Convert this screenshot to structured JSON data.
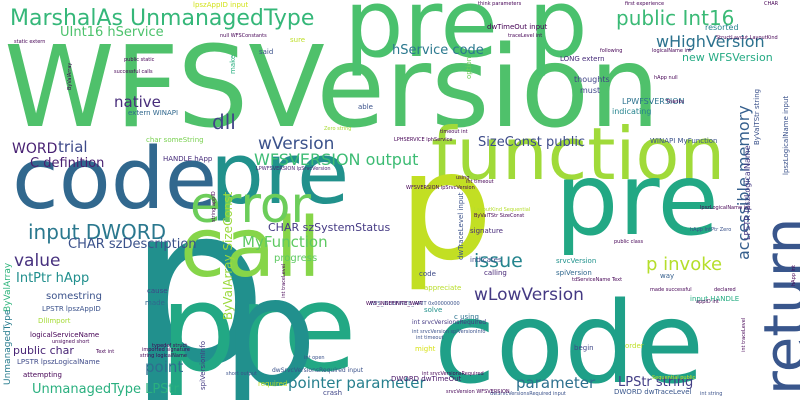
{
  "words": [
    {
      "text": "WFSVersion",
      "color": "#4fc16b"
    },
    {
      "text": "p",
      "color": "#21908d"
    },
    {
      "text": "pre",
      "color": "#22a884"
    },
    {
      "text": "code",
      "color": "#31688e"
    },
    {
      "text": "pre p",
      "color": "#4ac16d"
    },
    {
      "text": "code",
      "color": "#1fa088"
    },
    {
      "text": "function",
      "color": "#a0da39"
    },
    {
      "text": "pre",
      "color": "#21918c"
    },
    {
      "text": "p",
      "color": "#c2df23"
    },
    {
      "text": "call",
      "color": "#86d549"
    },
    {
      "text": "return",
      "color": "#39568c"
    },
    {
      "text": "MarshalAs UnmanagedType",
      "color": "#35b779"
    },
    {
      "text": "error",
      "color": "#6ccd5a"
    },
    {
      "text": "public Int16",
      "color": "#3aba76"
    },
    {
      "text": "input DWORD",
      "color": "#2a788e"
    },
    {
      "text": "wHighVersion",
      "color": "#2c728e"
    },
    {
      "text": "accessible memory",
      "color": "#355f8d"
    },
    {
      "text": "wVersion",
      "color": "#3b528b"
    },
    {
      "text": "WFSVERSION output",
      "color": "#3dbc74"
    },
    {
      "text": "p invoke",
      "color": "#b5de2b"
    },
    {
      "text": "issue",
      "color": "#25858e"
    },
    {
      "text": "wLowVersion",
      "color": "#443983"
    },
    {
      "text": "pointer parameter",
      "color": "#27808e"
    },
    {
      "text": "parameter",
      "color": "#2d708e"
    },
    {
      "text": "point",
      "color": "#2e6e8e"
    },
    {
      "text": "native",
      "color": "#472c7a"
    },
    {
      "text": "dll",
      "color": "#414487"
    },
    {
      "text": "value",
      "color": "#46307e"
    },
    {
      "text": "MyFunction",
      "color": "#5ec962"
    },
    {
      "text": "UInt16 hService",
      "color": "#4cc26c"
    },
    {
      "text": "hService code",
      "color": "#2a788e"
    },
    {
      "text": "SizeConst public",
      "color": "#3e4c8a"
    },
    {
      "text": "C definition",
      "color": "#481f70"
    },
    {
      "text": "CHAR szDescription",
      "color": "#3b528b"
    },
    {
      "text": "CHAR szSystemStatus",
      "color": "#443983"
    },
    {
      "text": "IntPtr hApp",
      "color": "#218f8d"
    },
    {
      "text": "trial",
      "color": "#3e4989"
    },
    {
      "text": "WORD",
      "color": "#482173"
    },
    {
      "text": "LPStr string",
      "color": "#433e85"
    },
    {
      "text": "UnmanagedType LPStr",
      "color": "#2ab07f"
    },
    {
      "text": "new WFSVersion",
      "color": "#24aa83"
    },
    {
      "text": "ByValArray SizeConst",
      "color": "#9bd93c"
    },
    {
      "text": "progress",
      "color": "#5ec962"
    },
    {
      "text": "somestring",
      "color": "#3b528b"
    },
    {
      "text": "public char",
      "color": "#482475"
    },
    {
      "text": "LPWFSVERSION",
      "color": "#2c728e"
    },
    {
      "text": "indicating",
      "color": "#25848e"
    },
    {
      "text": "thoughts",
      "color": "#414487"
    },
    {
      "text": "must",
      "color": "#3f4788"
    },
    {
      "text": "resorted",
      "color": "#25838e"
    },
    {
      "text": "dwTimeOut input",
      "color": "#440154"
    },
    {
      "text": "native",
      "color": "#35b779"
    },
    {
      "text": "char someString",
      "color": "#7ad151"
    },
    {
      "text": "extern WINAPI",
      "color": "#31688e"
    },
    {
      "text": "HANDLE hApp",
      "color": "#472d7b"
    },
    {
      "text": "LPSTR lpszAppID",
      "color": "#3b528b"
    },
    {
      "text": "LPSTR lpszLogicalName",
      "color": "#3e4a89"
    },
    {
      "text": "logicalServiceName",
      "color": "#440154"
    },
    {
      "text": "DWORD dwTimeOut",
      "color": "#481668"
    },
    {
      "text": "DWORD dwTraceLevel",
      "color": "#39568c"
    },
    {
      "text": "DllImport",
      "color": "#a5db36"
    },
    {
      "text": "ByValArray",
      "color": "#2fb47c"
    },
    {
      "text": "UnmanagedType",
      "color": "#287c8e"
    },
    {
      "text": "attempting",
      "color": "#440154"
    },
    {
      "text": "signature",
      "color": "#472a7a"
    },
    {
      "text": "indicates",
      "color": "#3e4c8a"
    },
    {
      "text": "calling",
      "color": "#482878"
    },
    {
      "text": "srvcVersion",
      "color": "#20928c"
    },
    {
      "text": "spiVersion",
      "color": "#31688e"
    },
    {
      "text": "appreciate",
      "color": "#b8de29"
    },
    {
      "text": "solve",
      "color": "#21918c"
    },
    {
      "text": "c using",
      "color": "#2c728e"
    },
    {
      "text": "cause",
      "color": "#3f4788"
    },
    {
      "text": "made",
      "color": "#31688e"
    },
    {
      "text": "might",
      "color": "#d8e219"
    },
    {
      "text": "crash",
      "color": "#404688"
    },
    {
      "text": "required",
      "color": "#bddf26"
    },
    {
      "text": "begin",
      "color": "#3f4788"
    },
    {
      "text": "order",
      "color": "#bddf26"
    },
    {
      "text": "way",
      "color": "#355f8d"
    },
    {
      "text": "input HANDLE",
      "color": "#25ac82"
    },
    {
      "text": "code",
      "color": "#3e4a89"
    },
    {
      "text": "lpszAppID input",
      "color": "#d2e21b"
    },
    {
      "text": "spiVersionInfo",
      "color": "#443a83"
    },
    {
      "text": "dwTraceLevel input",
      "color": "#3b528b"
    },
    {
      "text": "lpszLogicalName input",
      "color": "#3b528b"
    },
    {
      "text": "said",
      "color": "#3b528b"
    },
    {
      "text": "able",
      "color": "#3b528b"
    },
    {
      "text": "make",
      "color": "#29af7f"
    },
    {
      "text": "option",
      "color": "#6ece58"
    },
    {
      "text": "LONG extern",
      "color": "#472c7a"
    },
    {
      "text": "WINAPI MyFunction",
      "color": "#3b528b"
    },
    {
      "text": "LPHSERVICE lphService",
      "color": "#440154"
    },
    {
      "text": "LPWFSVERSION lpSrvcVersion",
      "color": "#482475"
    },
    {
      "text": "first experience",
      "color": "#440154"
    },
    {
      "text": "think parameters",
      "color": "#440154"
    },
    {
      "text": "traceLevel int",
      "color": "#440154"
    },
    {
      "text": "logicalName int",
      "color": "#440154"
    },
    {
      "text": "lpszLogicalName int",
      "color": "#440154"
    },
    {
      "text": "null WFSConstants",
      "color": "#440154"
    },
    {
      "text": "static extern",
      "color": "#440154"
    },
    {
      "text": "successful calls",
      "color": "#440154"
    },
    {
      "text": "public static",
      "color": "#440154"
    },
    {
      "text": "timeout int",
      "color": "#440154"
    },
    {
      "text": "Thanks",
      "color": "#440154"
    },
    {
      "text": "hApp null",
      "color": "#440154"
    },
    {
      "text": "following",
      "color": "#440154"
    },
    {
      "text": "sure",
      "color": "#bddf26"
    },
    {
      "text": "Zero string",
      "color": "#a8db34"
    },
    {
      "text": "hApp IntPtr Zero",
      "color": "#3b528b"
    },
    {
      "text": "int srvcVersionsRequired",
      "color": "#443983"
    },
    {
      "text": "dwSrvcVersionsRequired input",
      "color": "#3b528b"
    },
    {
      "text": "WFS_INDEFINITE_WAIT 0x00000000",
      "color": "#3b528b"
    },
    {
      "text": "typedef struct",
      "color": "#440154"
    },
    {
      "text": "imported signature",
      "color": "#440154"
    },
    {
      "text": "string logicalName",
      "color": "#440154"
    },
    {
      "text": "Text int",
      "color": "#440154"
    },
    {
      "text": "unsigned short",
      "color": "#440154"
    },
    {
      "text": "short output",
      "color": "#3b528b"
    },
    {
      "text": "Sequential public",
      "color": "#c8e020"
    },
    {
      "text": "public class",
      "color": "#440154"
    },
    {
      "text": "declared",
      "color": "#440154"
    },
    {
      "text": "made successful",
      "color": "#440154"
    },
    {
      "text": "int open",
      "color": "#3b528b"
    },
    {
      "text": "int srvcVersion spiVersionInfo",
      "color": "#3b528b"
    },
    {
      "text": "int timeout",
      "color": "#3b528b"
    },
    {
      "text": "int timeout",
      "color": "#440154"
    },
    {
      "text": "appID int",
      "color": "#440154"
    },
    {
      "text": "int traceLevel",
      "color": "#440154"
    },
    {
      "text": "int string",
      "color": "#3b528b"
    },
    {
      "text": "dwSrvcVersionsRequired input",
      "color": "#3b528b"
    },
    {
      "text": "LayoutKind Sequential",
      "color": "#b5de2b"
    },
    {
      "text": "string appID",
      "color": "#440154"
    },
    {
      "text": "WFSVERSION lpSrvcVersion",
      "color": "#440154"
    },
    {
      "text": "StructLayout LayoutKind",
      "color": "#440154"
    },
    {
      "text": "hApp int",
      "color": "#440154"
    },
    {
      "text": "tdServiceName Text",
      "color": "#440154"
    },
    {
      "text": "WFS_INDEFINITE_WAIT",
      "color": "#440154"
    },
    {
      "text": "int traceLevel",
      "color": "#440154"
    },
    {
      "text": "int srvcVersionsRequired",
      "color": "#440154"
    },
    {
      "text": "LPSTR lpszLogicalName",
      "color": "#443983"
    },
    {
      "text": "ByValTStr string",
      "color": "#3b528b"
    },
    {
      "text": "CHAR",
      "color": "#440154"
    },
    {
      "text": "srvcVersion WFSVERSION",
      "color": "#440154"
    },
    {
      "text": "ByValTStr SizeConst",
      "color": "#440154"
    },
    {
      "text": "ByValArray",
      "color": "#440154"
    },
    {
      "text": "using",
      "color": "#440154"
    }
  ]
}
